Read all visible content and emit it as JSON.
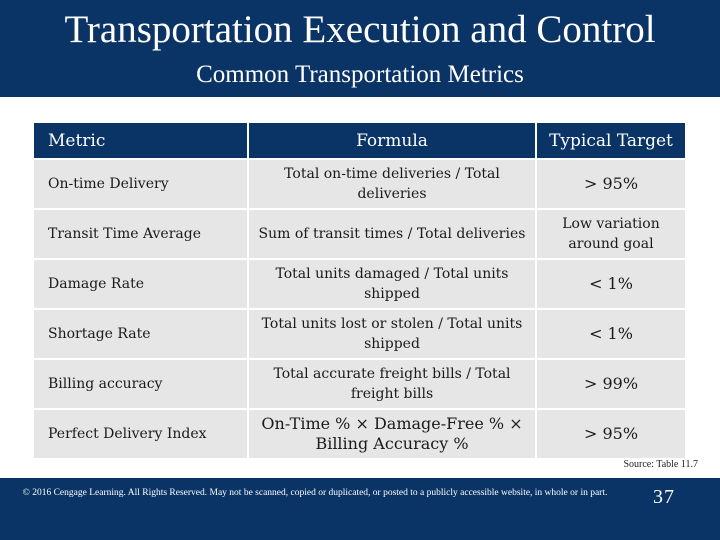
{
  "header": {
    "title": "Transportation Execution and Control",
    "subtitle": "Common Transportation Metrics"
  },
  "table": {
    "columns": [
      "Metric",
      "Formula",
      "Typical Target"
    ],
    "rows": [
      {
        "metric": "On-time Delivery",
        "formula": "Total on-time deliveries / Total deliveries",
        "target": "> 95%"
      },
      {
        "metric": "Transit Time Average",
        "formula": "Sum of transit times / Total deliveries",
        "target": "Low variation around goal"
      },
      {
        "metric": "Damage  Rate",
        "formula": "Total units damaged / Total units shipped",
        "target": "< 1%"
      },
      {
        "metric": "Shortage Rate",
        "formula": "Total units lost or stolen / Total units shipped",
        "target": "< 1%"
      },
      {
        "metric": "Billing accuracy",
        "formula": "Total accurate freight bills / Total freight bills",
        "target": "> 99%"
      },
      {
        "metric": "Perfect Delivery Index",
        "formula": "On-Time % × Damage-Free % × Billing Accuracy %",
        "target": "> 95%"
      }
    ]
  },
  "source": "Source: Table 11.7",
  "footer": {
    "copyright": "© 2016 Cengage Learning. All Rights Reserved. May not be scanned, copied or duplicated, or posted to a publicly accessible website, in whole or in part.",
    "page_number": "37"
  },
  "colors": {
    "navy": "#0a3466",
    "row_bg": "#e6e6e6"
  }
}
